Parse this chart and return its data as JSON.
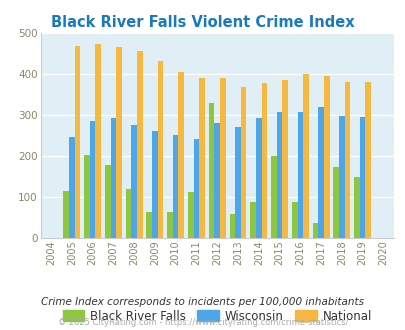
{
  "title": "Black River Falls Violent Crime Index",
  "years": [
    2004,
    2005,
    2006,
    2007,
    2008,
    2009,
    2010,
    2011,
    2012,
    2013,
    2014,
    2015,
    2016,
    2017,
    2018,
    2019,
    2020
  ],
  "black_river_falls": [
    null,
    115,
    203,
    177,
    119,
    62,
    62,
    112,
    330,
    58,
    87,
    200,
    87,
    35,
    172,
    148,
    null
  ],
  "wisconsin": [
    null,
    245,
    286,
    293,
    276,
    261,
    251,
    240,
    281,
    271,
    293,
    306,
    306,
    319,
    298,
    294,
    null
  ],
  "national": [
    null,
    469,
    474,
    467,
    455,
    432,
    405,
    389,
    389,
    368,
    379,
    384,
    399,
    395,
    381,
    381,
    null
  ],
  "color_brf": "#8dc63f",
  "color_wi": "#4da6e8",
  "color_nat": "#f5b942",
  "bg_color": "#e0eef5",
  "title_color": "#1a7abf",
  "subtitle_color": "#333333",
  "footer_color": "#aaaaaa",
  "ylabel_max": 500,
  "yticks": [
    0,
    100,
    200,
    300,
    400,
    500
  ],
  "subtitle": "Crime Index corresponds to incidents per 100,000 inhabitants",
  "footer": "© 2025 CityRating.com - https://www.cityrating.com/crime-statistics/",
  "bar_width": 0.27
}
